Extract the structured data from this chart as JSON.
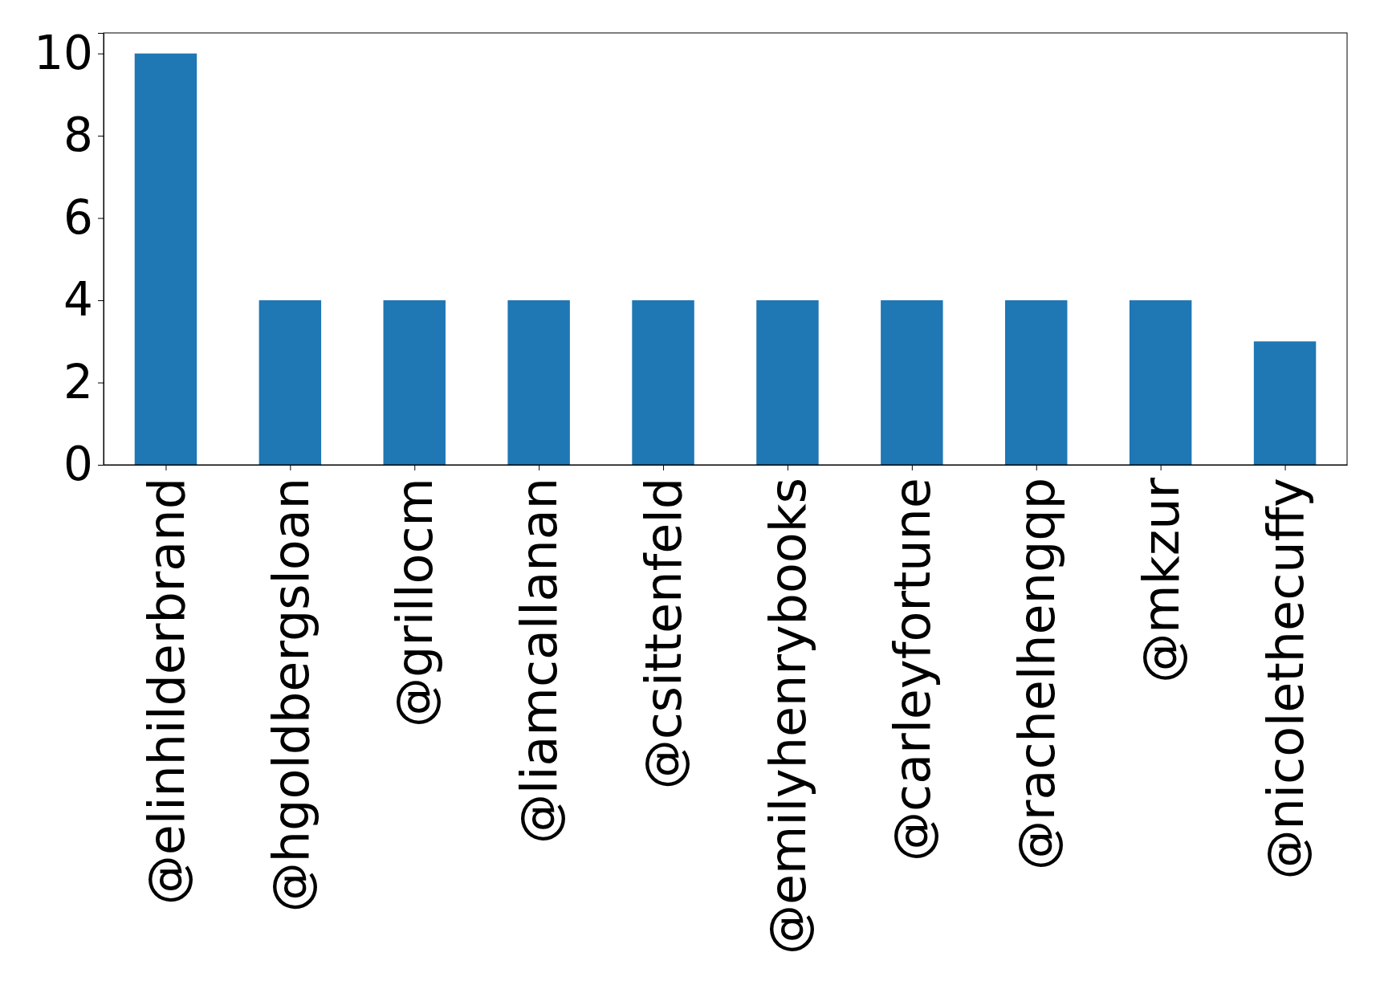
{
  "chart_data": {
    "type": "bar",
    "categories": [
      "@elinhilderbrand",
      "@hgoldbergsloan",
      "@grillocm",
      "@liamcallanan",
      "@csittenfeld",
      "@emilyhenrybooks",
      "@carleyfortune",
      "@rachelhengqp",
      "@mkzur",
      "@nicolethecuffy"
    ],
    "values": [
      10,
      4,
      4,
      4,
      4,
      4,
      4,
      4,
      4,
      3
    ],
    "color": "#1f77b4",
    "ylim": [
      0,
      10.5
    ],
    "yticks": [
      0,
      2,
      4,
      6,
      8,
      10
    ],
    "grid": false
  }
}
